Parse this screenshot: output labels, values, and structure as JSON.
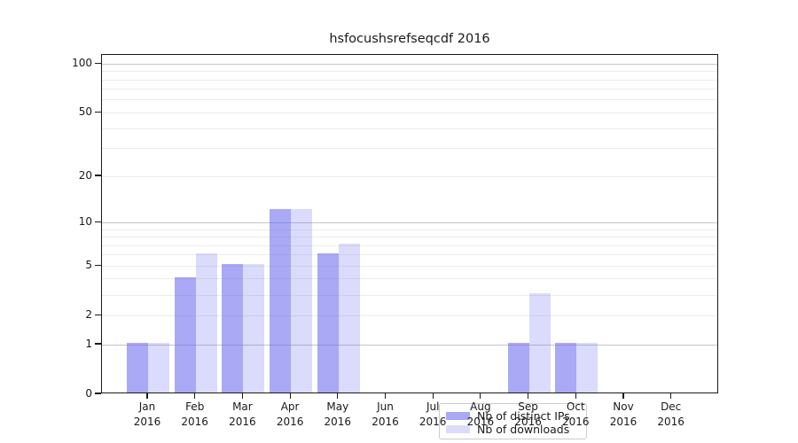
{
  "chart_data": {
    "type": "bar",
    "title": "hsfocushsrefseqcdf 2016",
    "categories": [
      "Jan",
      "Feb",
      "Mar",
      "Apr",
      "May",
      "Jun",
      "Jul",
      "Aug",
      "Sep",
      "Oct",
      "Nov",
      "Dec"
    ],
    "year_label": "2016",
    "series": [
      {
        "name": "Nb of distinct IPs",
        "color": "#5a5aee",
        "alpha": 0.52,
        "values": [
          1,
          4,
          5,
          12,
          6,
          0,
          0,
          0,
          1,
          1,
          0,
          0
        ]
      },
      {
        "name": "Nb of downloads",
        "color": "#5a5aee",
        "alpha": 0.22,
        "values": [
          1,
          6,
          5,
          12,
          7,
          0,
          0,
          0,
          3,
          1,
          0,
          0
        ]
      }
    ],
    "xlabel": "",
    "ylabel": "",
    "yscale": "log1p",
    "ylim": [
      0,
      100
    ],
    "yticks": [
      0,
      1,
      2,
      5,
      10,
      20,
      50,
      100
    ],
    "major_gridlines": [
      1,
      10,
      100
    ],
    "minor_gridlines": [
      2,
      3,
      4,
      5,
      6,
      7,
      8,
      9,
      20,
      30,
      40,
      50,
      60,
      70,
      80,
      90
    ],
    "grid": true,
    "legend_position": "lower center"
  },
  "colors": {
    "background": "#ffffff",
    "axis": "#1a1a1a",
    "text": "#1a1a1a",
    "major_gridline": "#c6c6c6",
    "minor_gridline": "#ececec",
    "legend_border": "#cccccc"
  }
}
